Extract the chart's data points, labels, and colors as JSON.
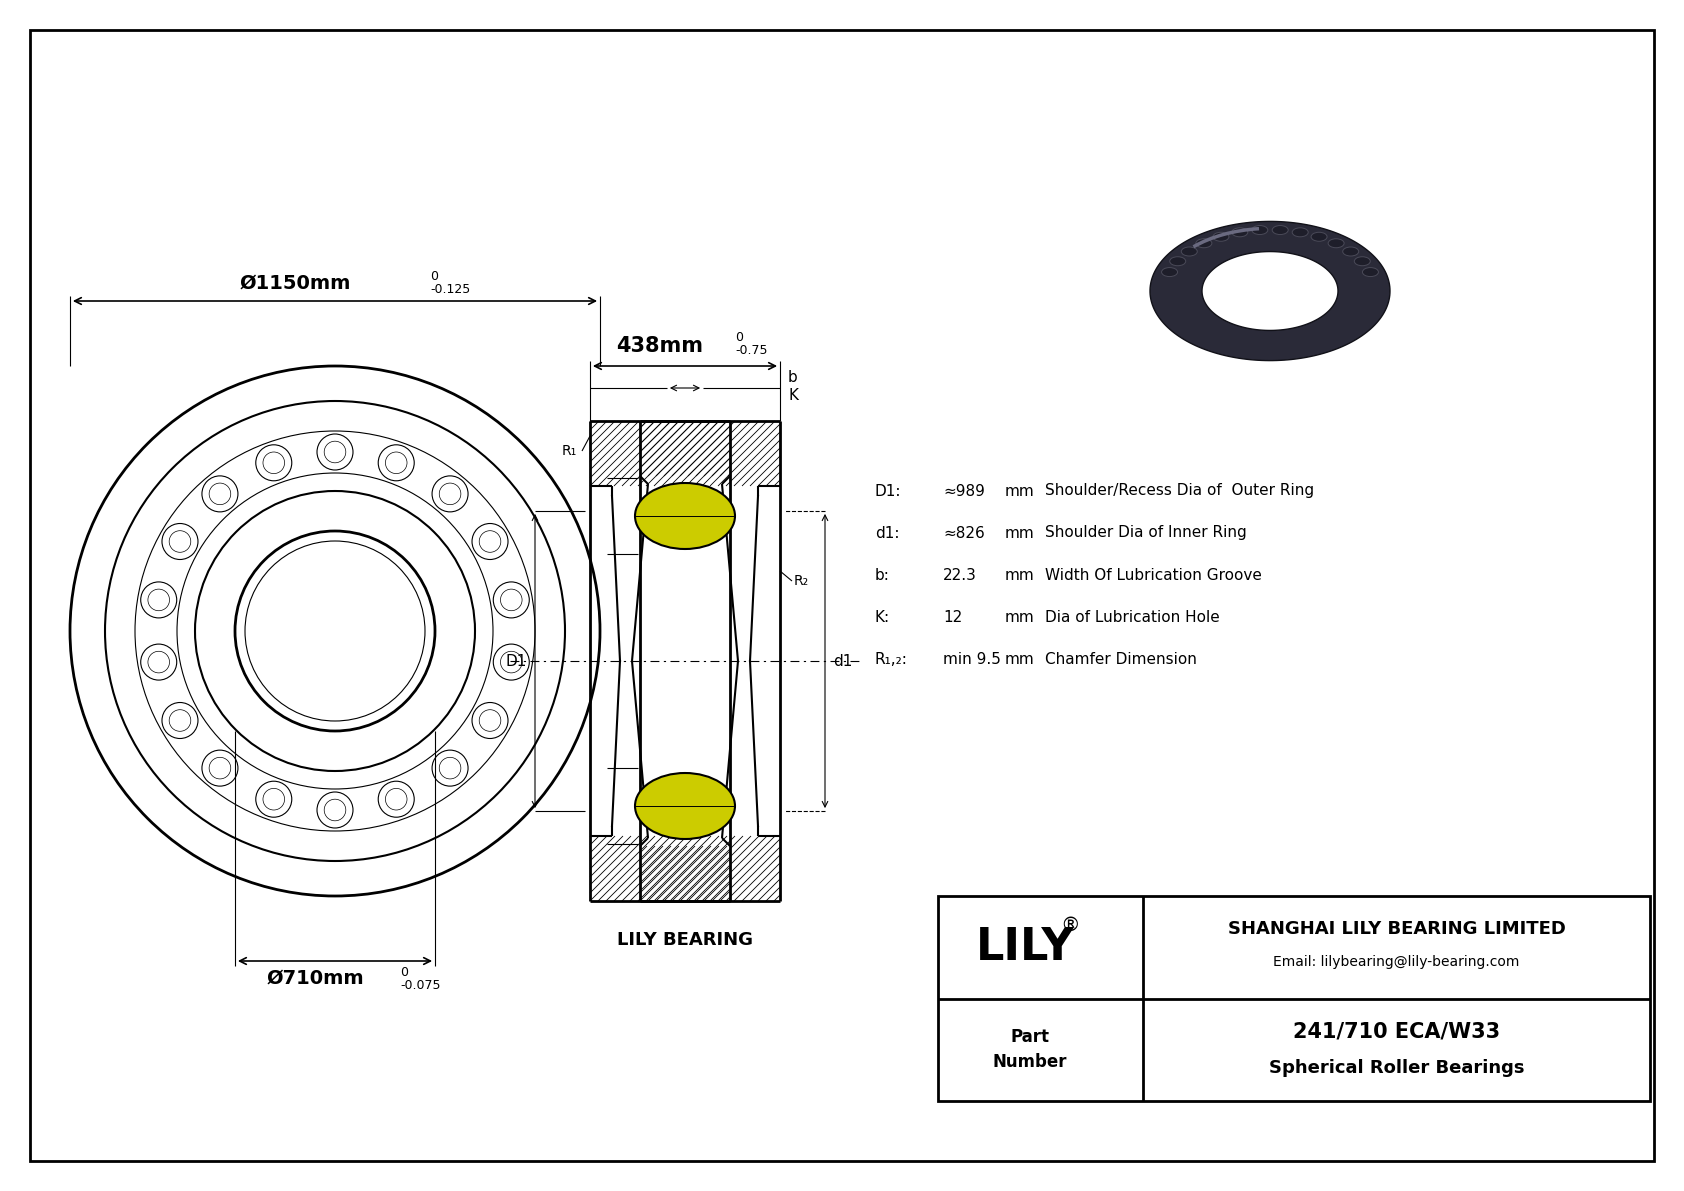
{
  "bg_color": "#ffffff",
  "line_color": "#000000",
  "outer_diameter_label": "Ø1150mm",
  "outer_tolerance_top": "0",
  "outer_tolerance_bot": "-0.125",
  "inner_diameter_label": "Ø710mm",
  "inner_tolerance_top": "0",
  "inner_tolerance_bot": "-0.075",
  "width_label": "438mm",
  "width_tolerance_top": "0",
  "width_tolerance_bot": "-0.75",
  "d1_label": "D1:",
  "d1_val": "≈989",
  "d1_unit": "mm",
  "d1_desc": "Shoulder/Recess Dia of  Outer Ring",
  "d1s_label": "d1:",
  "d1s_val": "≈826",
  "d1s_unit": "mm",
  "d1s_desc": "Shoulder Dia of Inner Ring",
  "b_label": "b:",
  "b_val": "22.3",
  "b_unit": "mm",
  "b_desc": "Width Of Lubrication Groove",
  "k_label": "K:",
  "k_val": "12",
  "k_unit": "mm",
  "k_desc": "Dia of Lubrication Hole",
  "r_label": "R₁,₂:",
  "r_val": "min 9.5",
  "r_unit": "mm",
  "r_desc": "Chamfer Dimension",
  "company": "SHANGHAI LILY BEARING LIMITED",
  "email": "Email: lilybearing@lily-bearing.com",
  "part_number": "241/710 ECA/W33",
  "bearing_type": "Spherical Roller Bearings",
  "lily_bearing_label": "LILY BEARING",
  "lily_logo": "LILY",
  "registered": "®"
}
